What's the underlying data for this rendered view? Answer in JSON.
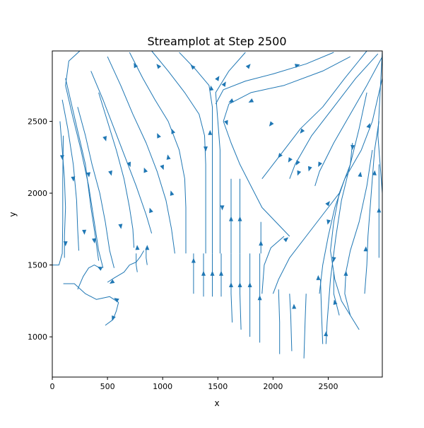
{
  "chart_data": {
    "type": "streamplot",
    "title": "Streamplot at Step 2500",
    "xlabel": "x",
    "ylabel": "y",
    "xlim": [
      0,
      2990
    ],
    "ylim": [
      720,
      2990
    ],
    "x_ticks": [
      {
        "value": 0,
        "label": "0"
      },
      {
        "value": 500,
        "label": "500"
      },
      {
        "value": 1000,
        "label": "1000"
      },
      {
        "value": 1500,
        "label": "1500"
      },
      {
        "value": 2000,
        "label": "2000"
      },
      {
        "value": 2500,
        "label": "2500"
      }
    ],
    "y_ticks": [
      {
        "value": 1000,
        "label": "1000"
      },
      {
        "value": 1500,
        "label": "1500"
      },
      {
        "value": 2000,
        "label": "2000"
      },
      {
        "value": 2500,
        "label": "2500"
      }
    ],
    "line_color": "#1f77b4",
    "grid": false,
    "streamlines": [
      [
        [
          250,
          2990
        ],
        [
          150,
          2920
        ],
        [
          120,
          2750
        ],
        [
          180,
          2550
        ],
        [
          260,
          2300
        ],
        [
          330,
          2050
        ],
        [
          380,
          1800
        ],
        [
          420,
          1600
        ],
        [
          460,
          1480
        ]
      ],
      [
        [
          120,
          2800
        ],
        [
          180,
          2600
        ],
        [
          240,
          2400
        ],
        [
          300,
          2200
        ],
        [
          350,
          1900
        ],
        [
          390,
          1700
        ],
        [
          420,
          1530
        ]
      ],
      [
        [
          90,
          2650
        ],
        [
          140,
          2450
        ],
        [
          190,
          2200
        ],
        [
          220,
          1950
        ],
        [
          230,
          1750
        ],
        [
          240,
          1600
        ]
      ],
      [
        [
          70,
          2500
        ],
        [
          90,
          2300
        ],
        [
          110,
          2100
        ],
        [
          120,
          1900
        ],
        [
          110,
          1700
        ],
        [
          110,
          1550
        ]
      ],
      [
        [
          0,
          1500
        ],
        [
          60,
          1500
        ],
        [
          90,
          1580
        ],
        [
          95,
          1800
        ],
        [
          95,
          2100
        ],
        [
          100,
          2400
        ]
      ],
      [
        [
          350,
          2850
        ],
        [
          460,
          2650
        ],
        [
          560,
          2450
        ],
        [
          660,
          2250
        ],
        [
          760,
          2050
        ],
        [
          850,
          1850
        ],
        [
          900,
          1720
        ]
      ],
      [
        [
          500,
          2950
        ],
        [
          620,
          2750
        ],
        [
          730,
          2550
        ],
        [
          850,
          2350
        ],
        [
          950,
          2150
        ],
        [
          1030,
          1950
        ],
        [
          1080,
          1750
        ],
        [
          1110,
          1580
        ]
      ],
      [
        [
          420,
          2700
        ],
        [
          500,
          2500
        ],
        [
          580,
          2300
        ],
        [
          650,
          2100
        ],
        [
          700,
          1900
        ],
        [
          730,
          1750
        ],
        [
          740,
          1620
        ]
      ],
      [
        [
          230,
          2600
        ],
        [
          300,
          2400
        ],
        [
          360,
          2200
        ],
        [
          430,
          2000
        ],
        [
          480,
          1800
        ],
        [
          520,
          1600
        ],
        [
          560,
          1480
        ]
      ],
      [
        [
          700,
          2980
        ],
        [
          820,
          2800
        ],
        [
          930,
          2650
        ],
        [
          1050,
          2500
        ],
        [
          1150,
          2300
        ],
        [
          1200,
          2100
        ],
        [
          1210,
          1900
        ],
        [
          1210,
          1580
        ]
      ],
      [
        [
          900,
          2990
        ],
        [
          1050,
          2850
        ],
        [
          1200,
          2700
        ],
        [
          1330,
          2550
        ],
        [
          1380,
          2400
        ],
        [
          1390,
          2200
        ],
        [
          1390,
          1580
        ]
      ],
      [
        [
          1150,
          2980
        ],
        [
          1300,
          2860
        ],
        [
          1420,
          2750
        ],
        [
          1450,
          2600
        ],
        [
          1450,
          2300
        ],
        [
          1450,
          2050
        ],
        [
          1450,
          1580
        ]
      ],
      [
        [
          1750,
          2980
        ],
        [
          1600,
          2850
        ],
        [
          1480,
          2700
        ],
        [
          1500,
          2500
        ],
        [
          1520,
          2300
        ],
        [
          1520,
          1900
        ],
        [
          1520,
          1580
        ]
      ],
      [
        [
          2550,
          2980
        ],
        [
          2300,
          2900
        ],
        [
          2000,
          2830
        ],
        [
          1750,
          2780
        ],
        [
          1550,
          2720
        ],
        [
          1480,
          2620
        ]
      ],
      [
        [
          2700,
          2950
        ],
        [
          2450,
          2850
        ],
        [
          2100,
          2750
        ],
        [
          1800,
          2700
        ],
        [
          1600,
          2620
        ],
        [
          1550,
          2500
        ]
      ],
      [
        [
          1550,
          2500
        ],
        [
          1620,
          2350
        ],
        [
          1700,
          2200
        ],
        [
          1800,
          2050
        ],
        [
          1900,
          1900
        ],
        [
          2000,
          1820
        ],
        [
          2150,
          1700
        ]
      ],
      [
        [
          2850,
          2990
        ],
        [
          2650,
          2800
        ],
        [
          2450,
          2600
        ],
        [
          2250,
          2450
        ],
        [
          2050,
          2250
        ],
        [
          1900,
          2100
        ]
      ],
      [
        [
          2950,
          2970
        ],
        [
          2750,
          2800
        ],
        [
          2550,
          2600
        ],
        [
          2350,
          2400
        ],
        [
          2200,
          2200
        ],
        [
          2150,
          2100
        ]
      ],
      [
        [
          2990,
          2950
        ],
        [
          2850,
          2750
        ],
        [
          2700,
          2550
        ],
        [
          2550,
          2350
        ],
        [
          2420,
          2150
        ],
        [
          2380,
          2050
        ]
      ],
      [
        [
          2990,
          2800
        ],
        [
          2900,
          2500
        ],
        [
          2800,
          2300
        ],
        [
          2650,
          2100
        ],
        [
          2560,
          1900
        ],
        [
          2500,
          1700
        ],
        [
          2450,
          1500
        ],
        [
          2420,
          1300
        ]
      ],
      [
        [
          2850,
          2700
        ],
        [
          2780,
          2450
        ],
        [
          2700,
          2200
        ],
        [
          2620,
          1950
        ],
        [
          2570,
          1700
        ],
        [
          2520,
          1400
        ],
        [
          2490,
          1100
        ],
        [
          2480,
          950
        ]
      ],
      [
        [
          2960,
          2500
        ],
        [
          2920,
          2300
        ],
        [
          2900,
          2100
        ],
        [
          2880,
          1900
        ],
        [
          2860,
          1700
        ],
        [
          2850,
          1500
        ],
        [
          2830,
          1300
        ]
      ],
      [
        [
          2960,
          2200
        ],
        [
          2960,
          2000
        ],
        [
          2960,
          1800
        ],
        [
          2960,
          1550
        ]
      ],
      [
        [
          2900,
          2300
        ],
        [
          2850,
          2050
        ],
        [
          2780,
          1800
        ],
        [
          2700,
          1600
        ],
        [
          2660,
          1450
        ],
        [
          2650,
          1300
        ],
        [
          2700,
          1150
        ],
        [
          2780,
          1050
        ]
      ],
      [
        [
          2600,
          2000
        ],
        [
          2550,
          1800
        ],
        [
          2520,
          1600
        ],
        [
          2560,
          1400
        ],
        [
          2620,
          1250
        ],
        [
          2700,
          1150
        ]
      ],
      [
        [
          2990,
          2990
        ],
        [
          2970,
          2700
        ],
        [
          2950,
          2400
        ],
        [
          2990,
          2000
        ],
        [
          2990,
          1550
        ]
      ],
      [
        [
          2000,
          1300
        ],
        [
          2050,
          1400
        ],
        [
          2150,
          1550
        ],
        [
          2300,
          1700
        ],
        [
          2450,
          1850
        ],
        [
          2600,
          2000
        ],
        [
          2700,
          2200
        ],
        [
          2720,
          2350
        ]
      ],
      [
        [
          1900,
          1300
        ],
        [
          1920,
          1500
        ],
        [
          1980,
          1620
        ],
        [
          2100,
          1700
        ]
      ],
      [
        [
          1620,
          1580
        ],
        [
          1620,
          1900
        ],
        [
          1620,
          2100
        ]
      ],
      [
        [
          1700,
          1580
        ],
        [
          1700,
          1900
        ],
        [
          1700,
          2100
        ]
      ],
      [
        [
          1890,
          1580
        ],
        [
          1890,
          1700
        ],
        [
          1890,
          1800
        ]
      ],
      [
        [
          1280,
          1580
        ],
        [
          1280,
          1400
        ],
        [
          1280,
          1300
        ]
      ],
      [
        [
          1370,
          1580
        ],
        [
          1370,
          1400
        ],
        [
          1370,
          1280
        ]
      ],
      [
        [
          1450,
          1580
        ],
        [
          1450,
          1400
        ],
        [
          1450,
          1280
        ]
      ],
      [
        [
          1530,
          1580
        ],
        [
          1530,
          1400
        ],
        [
          1530,
          1280
        ]
      ],
      [
        [
          1620,
          1580
        ],
        [
          1620,
          1300
        ],
        [
          1630,
          1100
        ]
      ],
      [
        [
          1700,
          1580
        ],
        [
          1700,
          1300
        ],
        [
          1710,
          1050
        ]
      ],
      [
        [
          1790,
          1580
        ],
        [
          1790,
          1300
        ],
        [
          1790,
          1000
        ]
      ],
      [
        [
          1880,
          1580
        ],
        [
          1880,
          1250
        ],
        [
          1880,
          960
        ]
      ],
      [
        [
          2050,
          1330
        ],
        [
          2060,
          1100
        ],
        [
          2060,
          880
        ]
      ],
      [
        [
          2150,
          1300
        ],
        [
          2160,
          1150
        ],
        [
          2170,
          900
        ]
      ],
      [
        [
          2300,
          1300
        ],
        [
          2290,
          1100
        ],
        [
          2280,
          850
        ]
      ],
      [
        [
          2430,
          1400
        ],
        [
          2440,
          1150
        ],
        [
          2450,
          950
        ]
      ],
      [
        [
          2550,
          1450
        ],
        [
          2550,
          1300
        ],
        [
          2600,
          1150
        ]
      ],
      [
        [
          230,
          1330
        ],
        [
          280,
          1420
        ],
        [
          330,
          1480
        ],
        [
          380,
          1500
        ],
        [
          430,
          1480
        ]
      ],
      [
        [
          100,
          1370
        ],
        [
          200,
          1370
        ],
        [
          300,
          1300
        ],
        [
          400,
          1260
        ],
        [
          520,
          1280
        ],
        [
          600,
          1240
        ]
      ],
      [
        [
          480,
          1080
        ],
        [
          550,
          1120
        ],
        [
          580,
          1180
        ],
        [
          600,
          1240
        ]
      ],
      [
        [
          500,
          1380
        ],
        [
          560,
          1410
        ],
        [
          650,
          1450
        ],
        [
          700,
          1500
        ]
      ],
      [
        [
          700,
          1500
        ],
        [
          760,
          1520
        ],
        [
          800,
          1560
        ],
        [
          830,
          1600
        ]
      ],
      [
        [
          760,
          1580
        ],
        [
          760,
          1500
        ],
        [
          770,
          1450
        ]
      ],
      [
        [
          850,
          1620
        ],
        [
          850,
          1550
        ],
        [
          860,
          1500
        ]
      ]
    ],
    "arrows": [
      [
        1780,
        2885,
        -1
      ],
      [
        1500,
        2800,
        -1
      ],
      [
        960,
        2885,
        -1
      ],
      [
        2220,
        2890,
        -1
      ],
      [
        1560,
        2760,
        -1
      ],
      [
        1440,
        2730,
        -1
      ],
      [
        1270,
        2880,
        -1
      ],
      [
        750,
        2890,
        -1
      ],
      [
        1430,
        2420,
        -1
      ],
      [
        1090,
        2430,
        -1
      ],
      [
        960,
        2400,
        -1
      ],
      [
        700,
        2200,
        1
      ],
      [
        1050,
        2250,
        -1
      ],
      [
        840,
        2160,
        -1
      ],
      [
        530,
        2140,
        1
      ],
      [
        330,
        2130,
        1
      ],
      [
        90,
        2250,
        1
      ],
      [
        190,
        2100,
        1
      ],
      [
        290,
        1730,
        1
      ],
      [
        120,
        1650,
        1
      ],
      [
        380,
        1670,
        1
      ],
      [
        620,
        1770,
        1
      ],
      [
        890,
        1880,
        -1
      ],
      [
        1080,
        2000,
        -1
      ],
      [
        1390,
        2310,
        1
      ],
      [
        1580,
        2490,
        1
      ],
      [
        1540,
        1900,
        1
      ],
      [
        1620,
        1820,
        1
      ],
      [
        1700,
        1820,
        1
      ],
      [
        1890,
        1650,
        1
      ],
      [
        2120,
        1680,
        1
      ],
      [
        2220,
        2210,
        1
      ],
      [
        2150,
        2230,
        1
      ],
      [
        2330,
        2170,
        1
      ],
      [
        2230,
        2140,
        1
      ],
      [
        2420,
        2200,
        1
      ],
      [
        2500,
        1930,
        1
      ],
      [
        2500,
        1800,
        1
      ],
      [
        2550,
        1540,
        1
      ],
      [
        2410,
        1410,
        -1
      ],
      [
        2870,
        2470,
        -1
      ],
      [
        2720,
        2320,
        -1
      ],
      [
        2920,
        2140,
        -1
      ],
      [
        2790,
        2130,
        -1
      ],
      [
        2960,
        1880,
        -1
      ],
      [
        2840,
        1610,
        -1
      ],
      [
        2560,
        1240,
        -1
      ],
      [
        2480,
        1020,
        -1
      ],
      [
        2190,
        1210,
        -1
      ],
      [
        1280,
        1530,
        -1
      ],
      [
        1370,
        1440,
        -1
      ],
      [
        1450,
        1440,
        -1
      ],
      [
        1530,
        1440,
        -1
      ],
      [
        1620,
        1360,
        -1
      ],
      [
        1700,
        1360,
        -1
      ],
      [
        1790,
        1360,
        -1
      ],
      [
        1880,
        1270,
        -1
      ],
      [
        2660,
        1440,
        -1
      ],
      [
        2260,
        2430,
        1
      ],
      [
        2060,
        2260,
        1
      ],
      [
        1980,
        2480,
        1
      ],
      [
        1800,
        2640,
        1
      ],
      [
        1620,
        2640,
        1
      ],
      [
        430,
        1480,
        -1
      ],
      [
        540,
        1380,
        -1
      ],
      [
        580,
        1260,
        -1
      ],
      [
        550,
        1130,
        -1
      ],
      [
        770,
        1620,
        -1
      ],
      [
        860,
        1620,
        -1
      ],
      [
        1000,
        2180,
        1
      ],
      [
        480,
        2380,
        1
      ]
    ]
  }
}
